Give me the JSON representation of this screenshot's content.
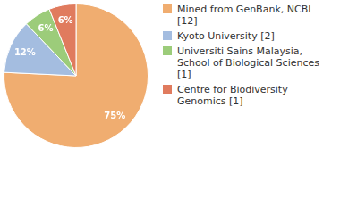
{
  "chart_data": {
    "type": "pie",
    "categories": [
      "Mined from GenBank, NCBI [12]",
      "Kyoto University [2]",
      "Universiti Sains Malaysia, School of Biological Sciences [1]",
      "Centre for Biodiversity Genomics [1]"
    ],
    "values": [
      75,
      12,
      6,
      6
    ],
    "value_labels": [
      "75%",
      "12%",
      "6%",
      "6%"
    ],
    "colors": [
      "#f0ad70",
      "#a4bde0",
      "#9ccc7a",
      "#e07b5e"
    ],
    "data_labels": true,
    "legend": "right"
  }
}
